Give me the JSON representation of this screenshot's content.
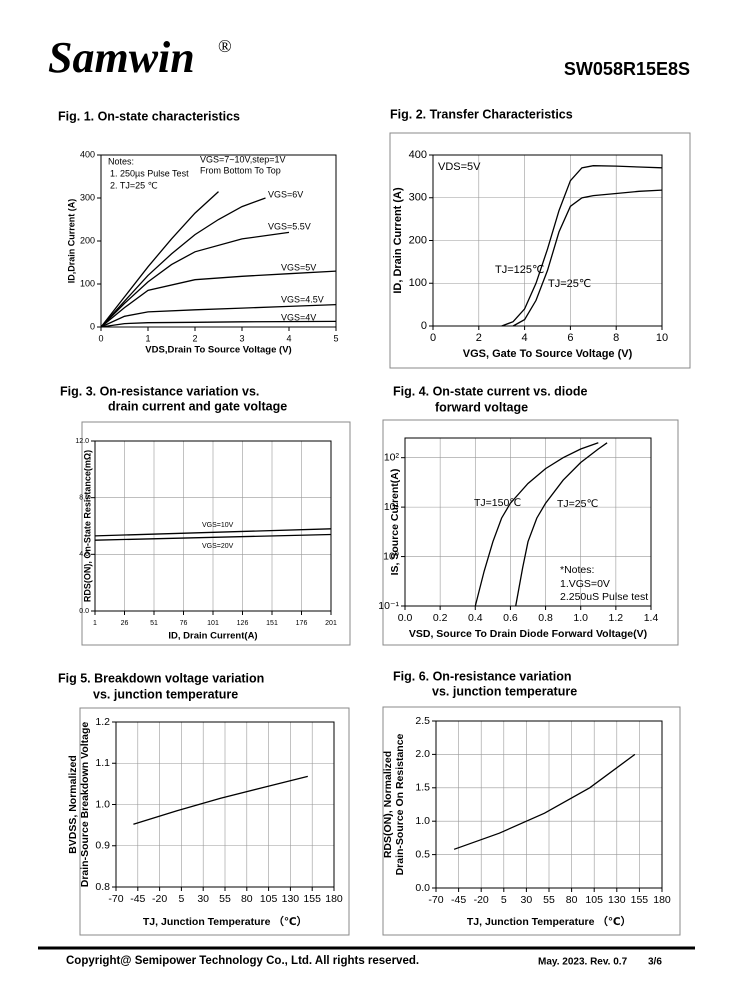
{
  "header": {
    "logo": "Samwin",
    "registered": "®",
    "part_number": "SW058R15E8S"
  },
  "chart_data": [
    {
      "type": "line",
      "title": [
        "Fig. 1. On-state characteristics"
      ],
      "xlabel": [
        "VDS,Drain To Source Voltage (V)"
      ],
      "ylabel": [
        "ID,Drain Current (A)"
      ],
      "xlim": [
        0,
        5
      ],
      "ylim": [
        0,
        400
      ],
      "xticks": [
        0,
        1,
        2,
        3,
        4,
        5
      ],
      "yticks": [
        0,
        100,
        200,
        300,
        400
      ],
      "grid": false,
      "notes": [
        "Notes:",
        "1. 250µs  Pulse Test",
        "2. TJ=25 ℃",
        "From Bottom To Top"
      ],
      "series": [
        {
          "name": "VGS=7~10V,step=1V",
          "color": "#000000",
          "x": [
            0,
            0.5,
            1,
            1.5,
            2,
            2.5
          ],
          "values": [
            0,
            70,
            140,
            205,
            265,
            315
          ]
        },
        {
          "name": "VGS=6V",
          "color": "#000000",
          "x": [
            0,
            0.5,
            1,
            1.5,
            2,
            2.5,
            3,
            3.5
          ],
          "values": [
            0,
            60,
            120,
            170,
            215,
            250,
            280,
            300
          ]
        },
        {
          "name": "VGS=5.5V",
          "color": "#000000",
          "x": [
            0,
            0.5,
            1,
            1.5,
            2,
            3,
            4
          ],
          "values": [
            0,
            55,
            105,
            145,
            175,
            205,
            220
          ]
        },
        {
          "name": "VGS=5V",
          "color": "#000000",
          "x": [
            0,
            0.5,
            1,
            2,
            3,
            4,
            5
          ],
          "values": [
            0,
            45,
            85,
            110,
            118,
            124,
            130
          ]
        },
        {
          "name": "VGS=4.5V",
          "color": "#000000",
          "x": [
            0,
            0.5,
            1,
            2,
            3,
            4,
            5
          ],
          "values": [
            0,
            25,
            35,
            40,
            44,
            48,
            52
          ]
        },
        {
          "name": "VGS=4V",
          "color": "#000000",
          "x": [
            0,
            0.5,
            1,
            2,
            3,
            5
          ],
          "values": [
            0,
            8,
            10,
            11,
            12,
            13
          ]
        }
      ]
    },
    {
      "type": "line",
      "title": [
        "Fig. 2. Transfer Characteristics"
      ],
      "xlabel": [
        "VGS,  Gate To Source Voltage (V)"
      ],
      "ylabel": [
        "ID,  Drain Current (A)"
      ],
      "xlim": [
        0,
        10
      ],
      "ylim": [
        0,
        400
      ],
      "xticks": [
        0,
        2,
        4,
        6,
        8,
        10
      ],
      "yticks": [
        0,
        100,
        200,
        300,
        400
      ],
      "grid": true,
      "notes": [
        "VDS=5V"
      ],
      "series": [
        {
          "name": "TJ=125℃",
          "color": "#000000",
          "x": [
            3,
            3.5,
            4,
            4.5,
            5,
            5.5,
            6,
            6.5,
            7,
            8,
            9,
            10
          ],
          "values": [
            0,
            10,
            40,
            100,
            180,
            270,
            340,
            370,
            375,
            374,
            372,
            370
          ]
        },
        {
          "name": "TJ=25℃",
          "color": "#000000",
          "x": [
            3.5,
            4,
            4.5,
            5,
            5.5,
            6,
            6.5,
            7,
            8,
            9,
            10
          ],
          "values": [
            0,
            15,
            60,
            130,
            220,
            280,
            300,
            305,
            310,
            315,
            318
          ]
        }
      ]
    },
    {
      "type": "line",
      "title": [
        "Fig. 3. On-resistance variation vs.",
        "drain current and gate voltage"
      ],
      "xlabel": [
        "ID, Drain Current(A)"
      ],
      "ylabel": [
        "RDS(ON), On-State Resistance(mΩ)"
      ],
      "xlim": [
        1,
        201
      ],
      "ylim": [
        0,
        12
      ],
      "xticks": [
        1,
        26,
        51,
        76,
        101,
        126,
        151,
        176,
        201
      ],
      "yticks": [
        {
          "value": 0,
          "label": "0.0"
        },
        {
          "value": 4,
          "label": "4.0"
        },
        {
          "value": 8,
          "label": "8.0"
        },
        {
          "value": 12,
          "label": "12.0"
        }
      ],
      "grid": true,
      "series": [
        {
          "name": "VGS=10V",
          "color": "#000000",
          "x": [
            1,
            201
          ],
          "values": [
            5.3,
            5.8
          ]
        },
        {
          "name": "VGS=20V",
          "color": "#000000",
          "x": [
            1,
            201
          ],
          "values": [
            5.0,
            5.4
          ]
        }
      ]
    },
    {
      "type": "line",
      "title": [
        "Fig. 4. On-state current vs. diode",
        "forward voltage"
      ],
      "xlabel": [
        "VSD, Source To Drain Diode Forward Voltage(V)"
      ],
      "ylabel": [
        "IS, Source Current(A)"
      ],
      "xlim": [
        0,
        1.4
      ],
      "ylim": [
        0.1,
        250
      ],
      "yscale": "log",
      "xticks": [
        {
          "value": 0,
          "label": "0.0"
        },
        0.2,
        0.4,
        0.6,
        0.8,
        {
          "value": 1,
          "label": "1.0"
        },
        1.2,
        1.4
      ],
      "yticks": [
        {
          "value": 0.1,
          "label": "10⁻¹"
        },
        {
          "value": 1,
          "label": "10⁰"
        },
        {
          "value": 10,
          "label": "10¹"
        },
        {
          "value": 100,
          "label": "10²"
        }
      ],
      "grid": true,
      "notes": [
        "*Notes:",
        "1.VGS=0V",
        "2.250uS Pulse test"
      ],
      "series": [
        {
          "name": "TJ=150℃",
          "color": "#000000",
          "x": [
            0.4,
            0.45,
            0.5,
            0.55,
            0.6,
            0.7,
            0.8,
            0.9,
            1.0,
            1.1
          ],
          "values": [
            0.1,
            0.5,
            2,
            6,
            12,
            30,
            60,
            100,
            150,
            200
          ]
        },
        {
          "name": "TJ=25℃",
          "color": "#000000",
          "x": [
            0.63,
            0.67,
            0.7,
            0.75,
            0.8,
            0.9,
            1.0,
            1.1,
            1.15
          ],
          "values": [
            0.1,
            0.6,
            2,
            6,
            12,
            35,
            80,
            150,
            200
          ]
        }
      ]
    },
    {
      "type": "line",
      "title": [
        "Fig 5. Breakdown voltage variation",
        "vs. junction temperature"
      ],
      "xlabel": [
        "TJ, Junction Temperature （℃）"
      ],
      "ylabel": [
        "BVDSS, Normalized",
        "Drain-Source Breakdown Voltage"
      ],
      "xlim": [
        -70,
        180
      ],
      "ylim": [
        0.8,
        1.2
      ],
      "xticks": [
        -70,
        -45,
        -20,
        5,
        30,
        55,
        80,
        105,
        130,
        155,
        180
      ],
      "yticks": [
        0.8,
        0.9,
        {
          "value": 1,
          "label": "1.0"
        },
        1.1,
        1.2
      ],
      "grid": true,
      "series": [
        {
          "color": "#000000",
          "x": [
            -50,
            0,
            50,
            100,
            150
          ],
          "values": [
            0.952,
            0.985,
            1.015,
            1.042,
            1.068
          ]
        }
      ]
    },
    {
      "type": "line",
      "title": [
        "Fig. 6. On-resistance variation",
        "vs. junction temperature"
      ],
      "xlabel": [
        "TJ, Junction Temperature （℃）"
      ],
      "ylabel": [
        "RDS(ON), Normalized",
        "Drain-Source On Resistance"
      ],
      "xlim": [
        -70,
        180
      ],
      "ylim": [
        0,
        2.5
      ],
      "xticks": [
        -70,
        -45,
        -20,
        5,
        30,
        55,
        80,
        105,
        130,
        155,
        180
      ],
      "yticks": [
        {
          "value": 0,
          "label": "0.0"
        },
        0.5,
        {
          "value": 1,
          "label": "1.0"
        },
        1.5,
        {
          "value": 2,
          "label": "2.0"
        },
        2.5
      ],
      "grid": true,
      "series": [
        {
          "color": "#000000",
          "x": [
            -50,
            0,
            50,
            100,
            150
          ],
          "values": [
            0.58,
            0.82,
            1.12,
            1.5,
            2.0
          ]
        }
      ]
    }
  ],
  "footer": {
    "copyright": "Copyright@ Semipower Technology Co., Ltd. All rights reserved.",
    "date": "May. 2023. Rev. 0.7",
    "page": "3/6"
  }
}
